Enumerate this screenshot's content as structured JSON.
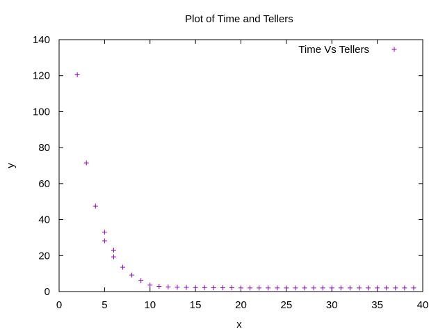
{
  "chart_data": {
    "type": "scatter",
    "title": "Plot of Time and Tellers",
    "xlabel": "x",
    "ylabel": "y",
    "xlim": [
      0,
      40
    ],
    "ylim": [
      0,
      140
    ],
    "xticks": [
      0,
      5,
      10,
      15,
      20,
      25,
      30,
      35,
      40
    ],
    "yticks": [
      0,
      20,
      40,
      60,
      80,
      100,
      120,
      140
    ],
    "grid": false,
    "legend_position": "top-right",
    "series": [
      {
        "name": "Time Vs Tellers",
        "color": "#9400d3",
        "marker": "plus",
        "points": [
          [
            2,
            120.5
          ],
          [
            3,
            71.5
          ],
          [
            4,
            47.5
          ],
          [
            5,
            33
          ],
          [
            5,
            28.2
          ],
          [
            6,
            23
          ],
          [
            6,
            19.3
          ],
          [
            7,
            13.5
          ],
          [
            8,
            9.2
          ],
          [
            9,
            6
          ],
          [
            10,
            3.6
          ],
          [
            11,
            2.9
          ],
          [
            12,
            2.6
          ],
          [
            13,
            2.4
          ],
          [
            14,
            2.3
          ],
          [
            15,
            2.2
          ],
          [
            16,
            2.2
          ],
          [
            17,
            2.1
          ],
          [
            18,
            2.1
          ],
          [
            19,
            2.1
          ],
          [
            20,
            2.0
          ],
          [
            21,
            2.0
          ],
          [
            22,
            2.0
          ],
          [
            23,
            2.0
          ],
          [
            24,
            2.0
          ],
          [
            25,
            2.0
          ],
          [
            26,
            2.0
          ],
          [
            27,
            2.0
          ],
          [
            28,
            2.0
          ],
          [
            29,
            2.0
          ],
          [
            30,
            2.0
          ],
          [
            31,
            2.0
          ],
          [
            32,
            2.0
          ],
          [
            33,
            2.0
          ],
          [
            34,
            2.0
          ],
          [
            35,
            2.0
          ],
          [
            36,
            2.0
          ],
          [
            37,
            2.0
          ],
          [
            38,
            2.0
          ],
          [
            39,
            2.0
          ]
        ]
      }
    ]
  }
}
